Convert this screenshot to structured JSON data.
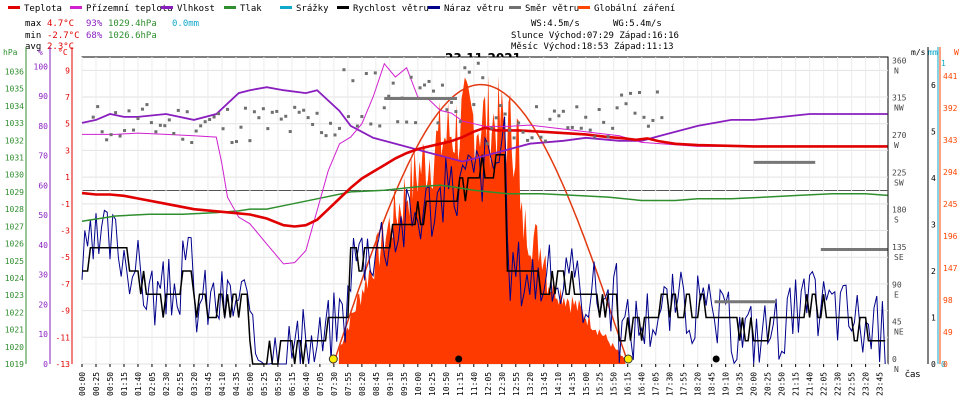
{
  "chart_data": {
    "type": "line",
    "title": "23.11.2021",
    "x_axis_label": "čas",
    "x_ticks": [
      "00:00",
      "00:25",
      "00:50",
      "01:15",
      "01:40",
      "02:05",
      "02:30",
      "02:55",
      "03:20",
      "03:45",
      "04:10",
      "04:35",
      "05:00",
      "05:25",
      "05:50",
      "06:15",
      "06:40",
      "07:05",
      "07:30",
      "07:55",
      "08:20",
      "08:45",
      "09:10",
      "09:35",
      "10:00",
      "10:25",
      "10:50",
      "11:15",
      "11:40",
      "12:05",
      "12:30",
      "12:55",
      "13:20",
      "13:45",
      "14:10",
      "14:35",
      "15:00",
      "15:25",
      "15:50",
      "16:15",
      "16:40",
      "17:05",
      "17:30",
      "17:55",
      "18:20",
      "18:45",
      "19:10",
      "19:35",
      "20:00",
      "20:25",
      "20:50",
      "21:15",
      "21:40",
      "22:05",
      "22:30",
      "22:55",
      "23:20",
      "23:45"
    ],
    "legend": [
      {
        "name": "Teplota",
        "color": "#e00000"
      },
      {
        "name": "Přízemní teplota",
        "color": "#d020d0"
      },
      {
        "name": "Vlhkost",
        "color": "#8a1fbf"
      },
      {
        "name": "Tlak",
        "color": "#2f8f2f"
      },
      {
        "name": "Srážky",
        "color": "#11a9c9"
      },
      {
        "name": "Rychlost větru",
        "color": "#000000"
      },
      {
        "name": "Náraz větru",
        "color": "#00008b"
      },
      {
        "name": "Směr větru",
        "color": "#707070"
      },
      {
        "name": "Globální záření",
        "color": "#ff4500"
      }
    ],
    "stats": {
      "max_label": "max",
      "max_temp": "4.7°C",
      "max_hum": "93%",
      "max_press": "1029.4hPa",
      "rain": "0.0mm",
      "min_label": "min",
      "min_temp": "-2.7°C",
      "min_hum": "68%",
      "min_press": "1026.6hPa",
      "avg_label": "avg",
      "avg_temp": "2.3°C"
    },
    "info": {
      "ws": "WS:4.5m/s",
      "wg": "WG:5.4m/s",
      "sun_line": "Slunce Východ:07:29  Západ:16:16",
      "moon_line": "Měsíc  Východ:18:53  Západ:11:13"
    },
    "axes": {
      "hpa": {
        "unit": "hPa",
        "ticks": [
          "1036",
          "1035",
          "1034",
          "1033",
          "1032",
          "1031",
          "1030",
          "1029",
          "1028",
          "1027",
          "1026",
          "1025",
          "1024",
          "1023",
          "1022",
          "1021",
          "1020",
          "1019"
        ]
      },
      "pct": {
        "unit": "%",
        "ticks": [
          "100",
          "90",
          "80",
          "70",
          "60",
          "50",
          "40",
          "30",
          "20",
          "10",
          "0"
        ]
      },
      "degc": {
        "unit": "°C",
        "ticks": [
          "9",
          "7",
          "5",
          "3",
          "1",
          "-1",
          "-3",
          "-5",
          "-7",
          "-9",
          "-11",
          "-13"
        ]
      },
      "ms": {
        "unit": "m/s",
        "ticks": [
          "6",
          "5",
          "4",
          "3",
          "2",
          "1",
          "0"
        ]
      },
      "mm": {
        "unit": "mm",
        "ticks": [
          "1",
          "0"
        ]
      },
      "dir": {
        "ticks": [
          "360 N",
          "315 NW",
          "270 W",
          "225 SW",
          "180 S",
          "135 SE",
          "90 E",
          "45 NE",
          "0 N"
        ]
      },
      "w": {
        "unit": "W",
        "ticks": [
          "441",
          "392",
          "343",
          "294",
          "245",
          "196",
          "147",
          "98",
          "49",
          "0"
        ]
      }
    },
    "series": {
      "temperature_c": [
        [
          0,
          -0.2
        ],
        [
          25,
          -0.3
        ],
        [
          50,
          -0.3
        ],
        [
          75,
          -0.4
        ],
        [
          100,
          -0.6
        ],
        [
          150,
          -1.0
        ],
        [
          200,
          -1.4
        ],
        [
          250,
          -1.6
        ],
        [
          300,
          -1.8
        ],
        [
          330,
          -2.1
        ],
        [
          360,
          -2.6
        ],
        [
          380,
          -2.7
        ],
        [
          400,
          -2.6
        ],
        [
          420,
          -2.2
        ],
        [
          440,
          -1.4
        ],
        [
          460,
          -0.6
        ],
        [
          480,
          0.2
        ],
        [
          500,
          0.9
        ],
        [
          520,
          1.4
        ],
        [
          540,
          1.9
        ],
        [
          560,
          2.4
        ],
        [
          580,
          2.8
        ],
        [
          600,
          3.1
        ],
        [
          620,
          3.3
        ],
        [
          640,
          3.5
        ],
        [
          660,
          3.7
        ],
        [
          680,
          4.0
        ],
        [
          700,
          4.4
        ],
        [
          720,
          4.7
        ],
        [
          740,
          4.5
        ],
        [
          780,
          4.5
        ],
        [
          820,
          4.4
        ],
        [
          860,
          4.3
        ],
        [
          900,
          4.2
        ],
        [
          940,
          4.0
        ],
        [
          970,
          3.9
        ],
        [
          990,
          3.8
        ],
        [
          1010,
          3.9
        ],
        [
          1030,
          3.7
        ],
        [
          1060,
          3.5
        ],
        [
          1100,
          3.4
        ],
        [
          1200,
          3.3
        ],
        [
          1300,
          3.3
        ],
        [
          1439,
          3.3
        ]
      ],
      "ground_temp_c": [
        [
          0,
          4.2
        ],
        [
          60,
          4.2
        ],
        [
          100,
          4.3
        ],
        [
          150,
          4.2
        ],
        [
          200,
          4.1
        ],
        [
          240,
          4.0
        ],
        [
          250,
          2.0
        ],
        [
          260,
          -0.5
        ],
        [
          280,
          -2.0
        ],
        [
          300,
          -2.5
        ],
        [
          330,
          -4.0
        ],
        [
          360,
          -5.5
        ],
        [
          380,
          -5.4
        ],
        [
          400,
          -4.5
        ],
        [
          420,
          -1.5
        ],
        [
          440,
          1.5
        ],
        [
          460,
          3.5
        ],
        [
          480,
          4.0
        ],
        [
          500,
          5.0
        ],
        [
          520,
          7.0
        ],
        [
          540,
          9.5
        ],
        [
          560,
          8.5
        ],
        [
          580,
          9.2
        ],
        [
          600,
          7.0
        ],
        [
          620,
          6.8
        ],
        [
          640,
          6.0
        ],
        [
          660,
          5.8
        ],
        [
          680,
          5.2
        ],
        [
          700,
          5.0
        ],
        [
          720,
          4.8
        ],
        [
          760,
          4.8
        ],
        [
          800,
          4.9
        ],
        [
          840,
          4.7
        ],
        [
          880,
          4.5
        ],
        [
          920,
          4.3
        ],
        [
          960,
          4.1
        ],
        [
          1000,
          3.6
        ],
        [
          1100,
          3.3
        ],
        [
          1200,
          3.3
        ],
        [
          1300,
          3.3
        ],
        [
          1439,
          3.3
        ]
      ],
      "humidity_pct": [
        [
          0,
          81
        ],
        [
          25,
          82
        ],
        [
          50,
          84
        ],
        [
          75,
          83
        ],
        [
          100,
          83
        ],
        [
          150,
          84
        ],
        [
          200,
          82
        ],
        [
          240,
          84
        ],
        [
          280,
          91
        ],
        [
          300,
          92
        ],
        [
          330,
          93
        ],
        [
          360,
          92
        ],
        [
          400,
          91
        ],
        [
          420,
          92
        ],
        [
          460,
          85
        ],
        [
          480,
          80
        ],
        [
          500,
          78
        ],
        [
          520,
          76
        ],
        [
          540,
          75
        ],
        [
          580,
          73
        ],
        [
          620,
          71
        ],
        [
          640,
          70
        ],
        [
          660,
          69
        ],
        [
          680,
          68
        ],
        [
          700,
          69
        ],
        [
          740,
          71
        ],
        [
          800,
          74
        ],
        [
          860,
          75
        ],
        [
          900,
          76
        ],
        [
          960,
          75
        ],
        [
          1000,
          75
        ],
        [
          1040,
          77
        ],
        [
          1100,
          80
        ],
        [
          1160,
          82
        ],
        [
          1200,
          82
        ],
        [
          1300,
          84
        ],
        [
          1439,
          84
        ]
      ],
      "pressure_hpa": [
        [
          0,
          1027.3
        ],
        [
          60,
          1027.6
        ],
        [
          120,
          1027.7
        ],
        [
          180,
          1027.7
        ],
        [
          240,
          1027.8
        ],
        [
          280,
          1027.9
        ],
        [
          300,
          1028.0
        ],
        [
          330,
          1028.0
        ],
        [
          360,
          1028.2
        ],
        [
          420,
          1028.6
        ],
        [
          480,
          1029.0
        ],
        [
          540,
          1029.1
        ],
        [
          600,
          1029.3
        ],
        [
          640,
          1029.4
        ],
        [
          660,
          1029.3
        ],
        [
          700,
          1029.1
        ],
        [
          760,
          1028.9
        ],
        [
          820,
          1028.9
        ],
        [
          880,
          1028.8
        ],
        [
          940,
          1028.7
        ],
        [
          1000,
          1028.5
        ],
        [
          1060,
          1028.5
        ],
        [
          1100,
          1028.6
        ],
        [
          1160,
          1028.6
        ],
        [
          1220,
          1028.7
        ],
        [
          1280,
          1028.8
        ],
        [
          1340,
          1028.9
        ],
        [
          1400,
          1028.9
        ],
        [
          1439,
          1028.8
        ]
      ],
      "radiation_w_m2_max": 441,
      "sunrise_min": 449,
      "sunset_min": 976,
      "moonrise_min": 1133,
      "moonset_min": 673
    },
    "ylim_temp": [
      -13,
      10
    ],
    "ylim_wind": [
      0,
      6.6
    ],
    "ylim_dir": [
      0,
      370
    ]
  }
}
